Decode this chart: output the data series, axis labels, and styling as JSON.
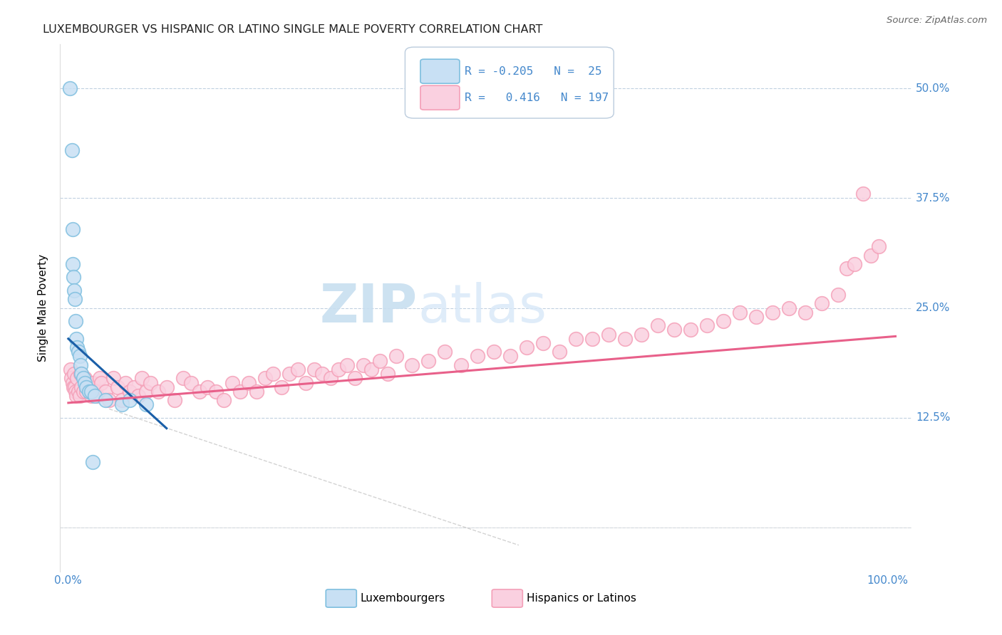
{
  "title": "LUXEMBOURGER VS HISPANIC OR LATINO SINGLE MALE POVERTY CORRELATION CHART",
  "source": "Source: ZipAtlas.com",
  "ylabel": "Single Male Poverty",
  "blue_color": "#7fbfdf",
  "pink_color": "#f4a0b8",
  "blue_fill": "#c8e0f4",
  "pink_fill": "#fad0e0",
  "trend_blue": "#1a5fa8",
  "trend_pink": "#e8608a",
  "ref_line_color": "#c8c8c8",
  "grid_color": "#c0d0e0",
  "tick_label_color": "#4488cc",
  "legend_r1": "R = -0.205",
  "legend_n1": "N =  25",
  "legend_r2": "R =  0.416",
  "legend_n2": "N = 197",
  "watermark_zip": "ZIP",
  "watermark_atlas": "atlas",
  "blue_x": [
    0.15,
    0.45,
    0.5,
    0.55,
    0.6,
    0.7,
    0.8,
    0.9,
    1.0,
    1.1,
    1.2,
    1.4,
    1.5,
    1.6,
    1.8,
    2.0,
    2.2,
    2.5,
    2.8,
    3.2,
    4.5,
    6.5,
    7.5,
    9.5,
    3.0
  ],
  "blue_y": [
    50.0,
    43.0,
    34.0,
    30.0,
    28.5,
    27.0,
    26.0,
    23.5,
    21.5,
    20.5,
    20.0,
    19.5,
    18.5,
    17.5,
    17.0,
    16.5,
    16.0,
    15.5,
    15.5,
    15.0,
    14.5,
    14.0,
    14.5,
    14.0,
    7.5
  ],
  "pink_x": [
    0.3,
    0.4,
    0.5,
    0.6,
    0.7,
    0.8,
    0.9,
    1.0,
    1.1,
    1.2,
    1.4,
    1.5,
    1.6,
    1.8,
    2.0,
    2.2,
    2.5,
    2.8,
    3.0,
    3.2,
    3.5,
    3.8,
    4.0,
    4.5,
    5.0,
    5.5,
    6.0,
    6.5,
    7.0,
    7.5,
    8.0,
    8.5,
    9.0,
    9.5,
    10.0,
    11.0,
    12.0,
    13.0,
    14.0,
    15.0,
    16.0,
    17.0,
    18.0,
    19.0,
    20.0,
    21.0,
    22.0,
    23.0,
    24.0,
    25.0,
    26.0,
    27.0,
    28.0,
    29.0,
    30.0,
    31.0,
    32.0,
    33.0,
    34.0,
    35.0,
    36.0,
    37.0,
    38.0,
    39.0,
    40.0,
    42.0,
    44.0,
    46.0,
    48.0,
    50.0,
    52.0,
    54.0,
    56.0,
    58.0,
    60.0,
    62.0,
    64.0,
    66.0,
    68.0,
    70.0,
    72.0,
    74.0,
    76.0,
    78.0,
    80.0,
    82.0,
    84.0,
    86.0,
    88.0,
    90.0,
    92.0,
    94.0,
    95.0,
    96.0,
    97.0,
    98.0,
    99.0
  ],
  "pink_y": [
    18.0,
    17.0,
    16.5,
    16.0,
    17.5,
    16.0,
    15.5,
    15.0,
    17.0,
    15.5,
    15.0,
    17.5,
    16.0,
    15.5,
    17.0,
    15.5,
    16.0,
    15.0,
    16.5,
    15.5,
    15.0,
    17.0,
    16.5,
    15.5,
    14.5,
    17.0,
    16.0,
    14.5,
    16.5,
    15.5,
    16.0,
    15.0,
    17.0,
    15.5,
    16.5,
    15.5,
    16.0,
    14.5,
    17.0,
    16.5,
    15.5,
    16.0,
    15.5,
    14.5,
    16.5,
    15.5,
    16.5,
    15.5,
    17.0,
    17.5,
    16.0,
    17.5,
    18.0,
    16.5,
    18.0,
    17.5,
    17.0,
    18.0,
    18.5,
    17.0,
    18.5,
    18.0,
    19.0,
    17.5,
    19.5,
    18.5,
    19.0,
    20.0,
    18.5,
    19.5,
    20.0,
    19.5,
    20.5,
    21.0,
    20.0,
    21.5,
    21.5,
    22.0,
    21.5,
    22.0,
    23.0,
    22.5,
    22.5,
    23.0,
    23.5,
    24.5,
    24.0,
    24.5,
    25.0,
    24.5,
    25.5,
    26.5,
    29.5,
    30.0,
    38.0,
    31.0,
    32.0
  ]
}
